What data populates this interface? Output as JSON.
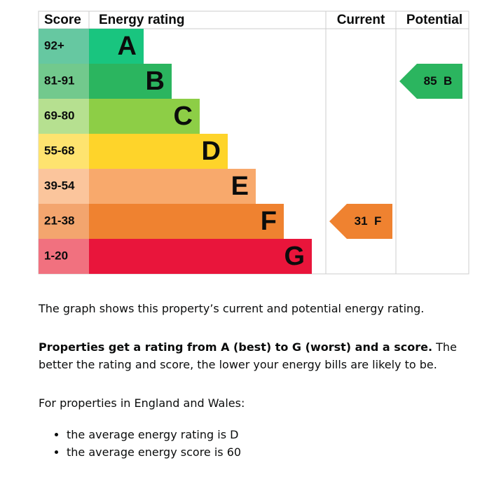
{
  "rating_chart": {
    "headers": {
      "score": "Score",
      "rating": "Energy rating",
      "current": "Current",
      "potential": "Potential"
    },
    "bands": [
      {
        "range": "92+",
        "letter": "A",
        "color": "#19c57f",
        "score_color": "#66c8a1"
      },
      {
        "range": "81-91",
        "letter": "B",
        "color": "#2bb55f",
        "score_color": "#72c98d"
      },
      {
        "range": "69-80",
        "letter": "C",
        "color": "#8dce46",
        "score_color": "#b6e090"
      },
      {
        "range": "55-68",
        "letter": "D",
        "color": "#fed42a",
        "score_color": "#fee36f"
      },
      {
        "range": "39-54",
        "letter": "E",
        "color": "#f8a96c",
        "score_color": "#fbc59c"
      },
      {
        "range": "21-38",
        "letter": "F",
        "color": "#ef8230",
        "score_color": "#f3a56e"
      },
      {
        "range": "1-20",
        "letter": "G",
        "color": "#e9153b",
        "score_color": "#f1717f"
      }
    ],
    "current": {
      "score": 31,
      "letter": "F"
    },
    "potential": {
      "score": 85,
      "letter": "B"
    }
  },
  "text": {
    "intro": "The graph shows this property’s current and potential energy rating.",
    "bold": "Properties get a rating from A (best) to G (worst) and a score.",
    "rest": "The better the rating and score, the lower your energy bills are likely to be.",
    "region": "For properties in England and Wales:",
    "bullets": [
      "the average energy rating is D",
      "the average energy score is 60"
    ]
  }
}
